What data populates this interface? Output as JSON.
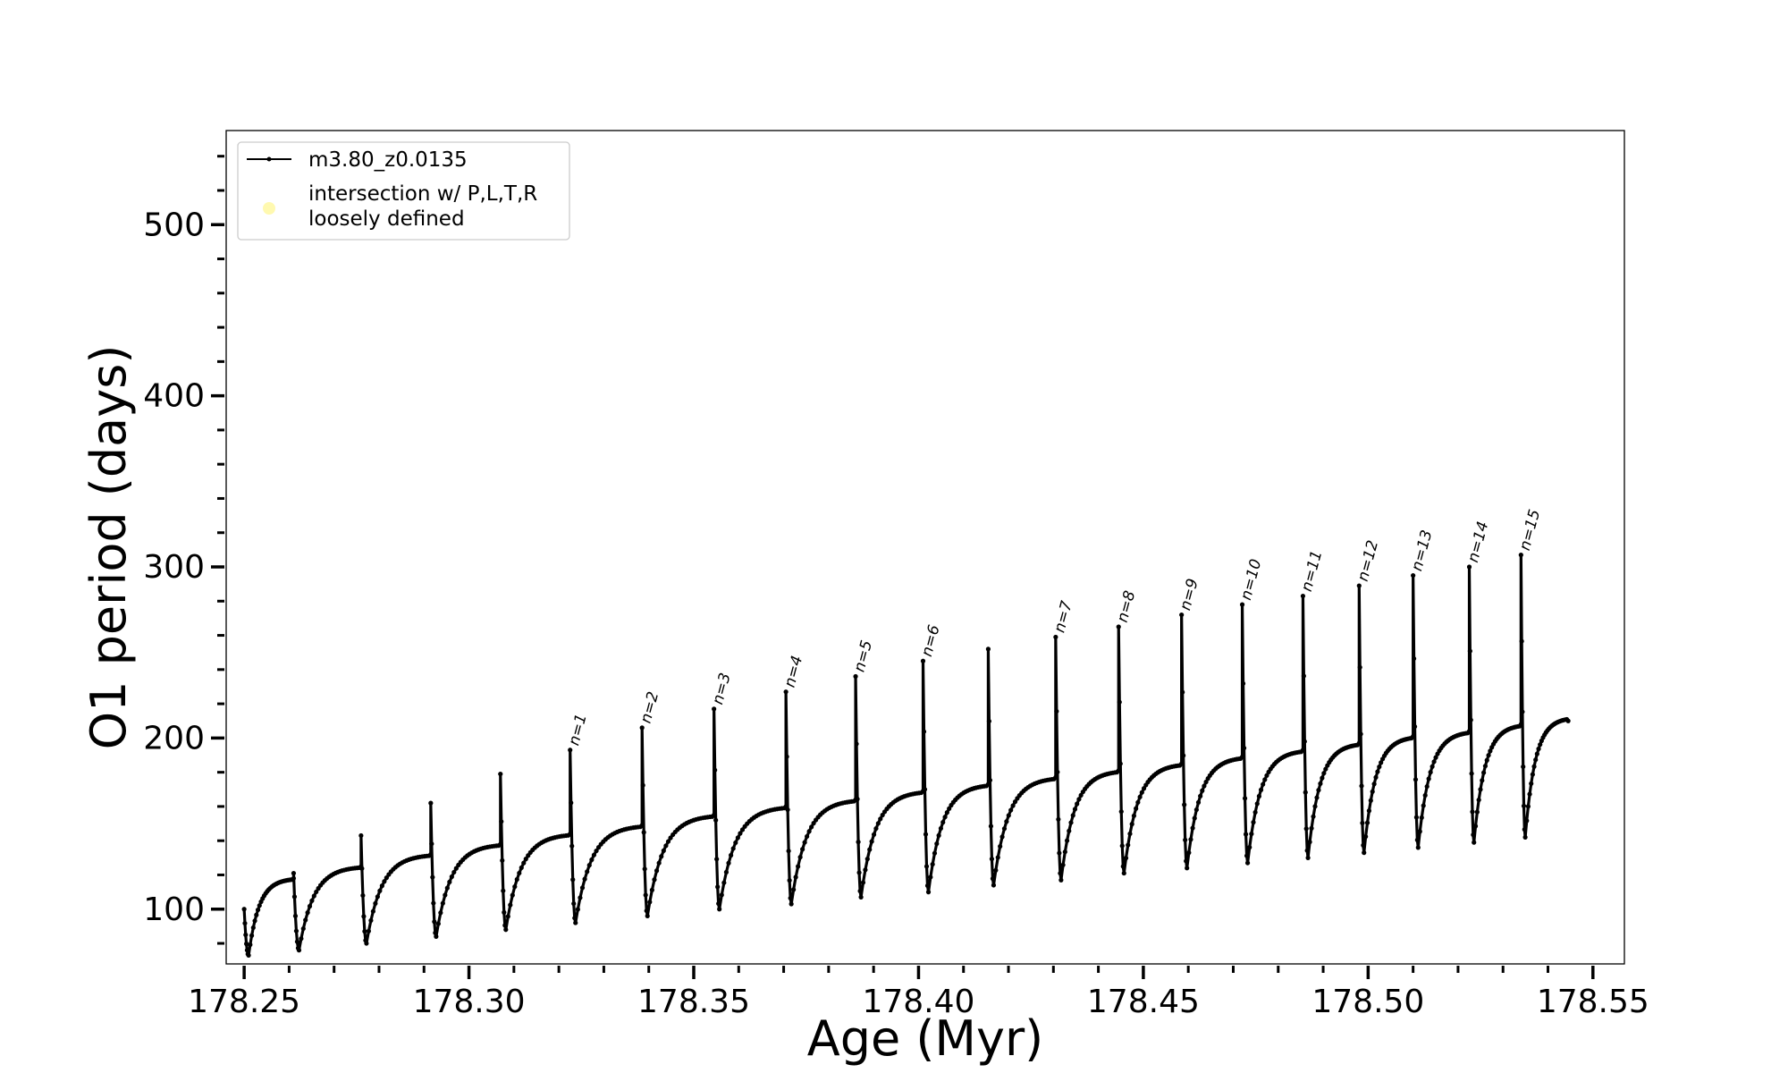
{
  "chart_data": {
    "type": "line",
    "title": "",
    "xlabel": "Age (Myr)",
    "ylabel": "O1 period (days)",
    "xlim": [
      178.246,
      178.557
    ],
    "ylim": [
      68,
      555
    ],
    "x_ticks": [
      178.25,
      178.3,
      178.35,
      178.4,
      178.45,
      178.5,
      178.55
    ],
    "x_tick_labels": [
      "178.25",
      "178.30",
      "178.35",
      "178.40",
      "178.45",
      "178.50",
      "178.55"
    ],
    "y_ticks": [
      100,
      200,
      300,
      400,
      500
    ],
    "y_tick_labels": [
      "100",
      "200",
      "300",
      "400",
      "500"
    ],
    "x_minor_step": 0.01,
    "y_minor_step": 20,
    "grid": false,
    "legend": {
      "placement": "top-left",
      "entries": [
        {
          "label": "m3.80_z0.0135",
          "marker": "line",
          "color": "#000000"
        },
        {
          "label": "intersection w/ P,L,T,R\nloosely defined",
          "marker": "circle",
          "color": "#fff9b0"
        }
      ]
    },
    "series": [
      {
        "name": "m3.80_z0.0135",
        "color": "#000000",
        "start": {
          "x": 178.25,
          "y": 100
        },
        "end": {
          "x": 178.5445,
          "y": 210
        },
        "cycles": [
          {
            "x": 178.25,
            "spike": 100,
            "min": 73,
            "plateau": 118
          },
          {
            "x": 178.261,
            "spike": 121,
            "min": 76,
            "plateau": 125
          },
          {
            "x": 178.276,
            "spike": 143,
            "min": 80,
            "plateau": 132
          },
          {
            "x": 178.2915,
            "spike": 162,
            "min": 84,
            "plateau": 138
          },
          {
            "x": 178.307,
            "spike": 179,
            "min": 88,
            "plateau": 144
          },
          {
            "x": 178.3225,
            "spike": 193,
            "min": 92,
            "plateau": 149
          },
          {
            "x": 178.3385,
            "spike": 206,
            "min": 96,
            "plateau": 155
          },
          {
            "x": 178.3545,
            "spike": 217,
            "min": 100,
            "plateau": 160
          },
          {
            "x": 178.3705,
            "spike": 227,
            "min": 103,
            "plateau": 164
          },
          {
            "x": 178.386,
            "spike": 236,
            "min": 107,
            "plateau": 169
          },
          {
            "x": 178.401,
            "spike": 245,
            "min": 110,
            "plateau": 173
          },
          {
            "x": 178.4155,
            "spike": 252,
            "min": 114,
            "plateau": 177
          },
          {
            "x": 178.4305,
            "spike": 259,
            "min": 117,
            "plateau": 181
          },
          {
            "x": 178.4445,
            "spike": 265,
            "min": 121,
            "plateau": 185
          },
          {
            "x": 178.4585,
            "spike": 272,
            "min": 124,
            "plateau": 189
          },
          {
            "x": 178.472,
            "spike": 278,
            "min": 127,
            "plateau": 193
          },
          {
            "x": 178.4855,
            "spike": 283,
            "min": 130,
            "plateau": 197
          },
          {
            "x": 178.498,
            "spike": 289,
            "min": 133,
            "plateau": 201
          },
          {
            "x": 178.51,
            "spike": 295,
            "min": 136,
            "plateau": 204
          },
          {
            "x": 178.5225,
            "spike": 300,
            "min": 139,
            "plateau": 208
          },
          {
            "x": 178.534,
            "spike": 307,
            "min": 142,
            "plateau": 212
          }
        ]
      }
    ],
    "annotations": [
      {
        "text": "n=1",
        "x": 178.3225,
        "y": 193
      },
      {
        "text": "n=2",
        "x": 178.3385,
        "y": 206
      },
      {
        "text": "n=3",
        "x": 178.3545,
        "y": 217
      },
      {
        "text": "n=4",
        "x": 178.3705,
        "y": 227
      },
      {
        "text": "n=5",
        "x": 178.386,
        "y": 236
      },
      {
        "text": "n=6",
        "x": 178.401,
        "y": 245
      },
      {
        "text": "n=7",
        "x": 178.4305,
        "y": 259
      },
      {
        "text": "n=8",
        "x": 178.4445,
        "y": 265
      },
      {
        "text": "n=9",
        "x": 178.4585,
        "y": 272
      },
      {
        "text": "n=10",
        "x": 178.472,
        "y": 278
      },
      {
        "text": "n=11",
        "x": 178.4855,
        "y": 283
      },
      {
        "text": "n=12",
        "x": 178.498,
        "y": 289
      },
      {
        "text": "n=13",
        "x": 178.51,
        "y": 295
      },
      {
        "text": "n=14",
        "x": 178.5225,
        "y": 300
      },
      {
        "text": "n=15",
        "x": 178.534,
        "y": 307
      }
    ]
  }
}
